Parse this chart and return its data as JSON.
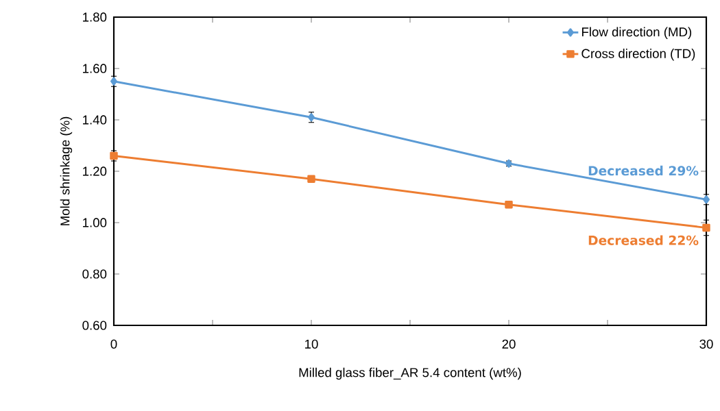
{
  "chart_data": {
    "type": "line",
    "xlabel": "Milled glass fiber_AR 5.4 content (wt%)",
    "ylabel": "Mold shrinkage (%)",
    "x": [
      0,
      10,
      20,
      30
    ],
    "series": [
      {
        "name": "Flow direction (MD)",
        "color": "#5b9bd5",
        "marker": "diamond",
        "values": [
          1.55,
          1.41,
          1.23,
          1.09
        ],
        "errors": [
          0.02,
          0.02,
          0.01,
          0.02
        ]
      },
      {
        "name": "Cross direction (TD)",
        "color": "#ed7d31",
        "marker": "square",
        "values": [
          1.26,
          1.17,
          1.07,
          0.98
        ],
        "errors": [
          0.02,
          null,
          null,
          0.03
        ]
      }
    ],
    "annotations": [
      {
        "text": "Decreased 29%",
        "x": 30,
        "y": 1.09
      },
      {
        "text": "Decreased 22%",
        "x": 30,
        "y": 0.98
      }
    ],
    "xlim": [
      0,
      30
    ],
    "xticks": [
      0,
      {
        "value": 5,
        "label": null
      },
      10,
      {
        "value": 15,
        "label": null
      },
      20,
      {
        "value": 25,
        "label": null
      },
      30
    ],
    "ylim": [
      0.6,
      1.8
    ],
    "yticks": [
      {
        "value": 0.6,
        "label": "0.60"
      },
      {
        "value": 0.8,
        "label": "0.80"
      },
      {
        "value": 1.0,
        "label": "1.00"
      },
      {
        "value": 1.2,
        "label": "1.20"
      },
      {
        "value": 1.4,
        "label": "1.40"
      },
      {
        "value": 1.6,
        "label": "1.60"
      },
      {
        "value": 1.8,
        "label": "1.80"
      }
    ],
    "legend": "top right",
    "line_style": "solid",
    "grid": false
  }
}
